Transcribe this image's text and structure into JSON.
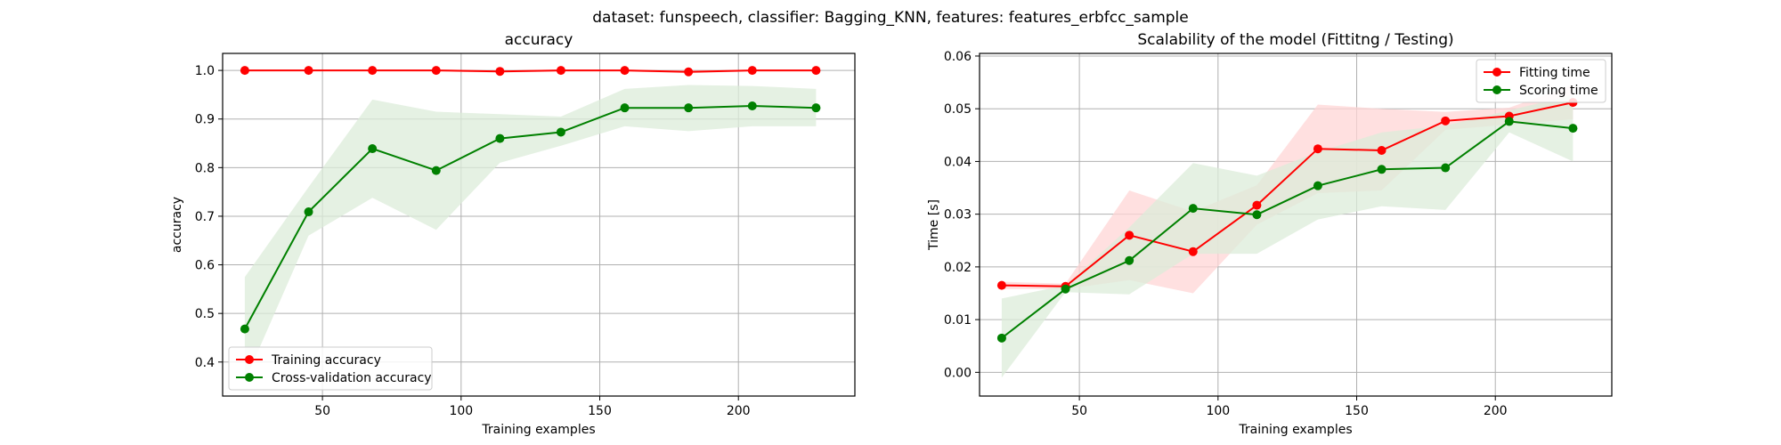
{
  "figure": {
    "suptitle": "dataset: funspeech, classifier: Bagging_KNN, features: features_erbfcc_sample"
  },
  "colors": {
    "red": "#ff0000",
    "green": "#008000",
    "grid": "#b0b0b0",
    "red_band": "#ffd6d6",
    "green_band": "#dcecd9"
  },
  "chart_data": [
    {
      "type": "line",
      "title": "accuracy",
      "xlabel": "Training examples",
      "ylabel": "accuracy",
      "xlim": [
        14,
        242
      ],
      "ylim": [
        0.33,
        1.035
      ],
      "xticks": [
        50,
        100,
        150,
        200
      ],
      "yticks": [
        0.4,
        0.5,
        0.6,
        0.7,
        0.8,
        0.9,
        1.0
      ],
      "ytick_labels": [
        "0.4",
        "0.5",
        "0.6",
        "0.7",
        "0.8",
        "0.9",
        "1.0"
      ],
      "grid": true,
      "legend_position": "lower-left",
      "x": [
        22,
        45,
        68,
        91,
        114,
        136,
        159,
        182,
        205,
        228
      ],
      "series": [
        {
          "name": "Training accuracy",
          "color": "red",
          "values": [
            1.0,
            1.0,
            1.0,
            1.0,
            0.998,
            1.0,
            1.0,
            0.997,
            1.0,
            1.0
          ],
          "lower": [
            0.998,
            0.999,
            0.999,
            0.998,
            0.995,
            0.998,
            0.998,
            0.994,
            0.998,
            0.998
          ],
          "upper": [
            1.0,
            1.0,
            1.0,
            1.0,
            1.0,
            1.0,
            1.0,
            1.0,
            1.0,
            1.0
          ]
        },
        {
          "name": "Cross-validation accuracy",
          "color": "green",
          "values": [
            0.468,
            0.709,
            0.839,
            0.794,
            0.86,
            0.873,
            0.923,
            0.923,
            0.927,
            0.923
          ],
          "lower": [
            0.36,
            0.66,
            0.738,
            0.672,
            0.81,
            0.845,
            0.885,
            0.875,
            0.885,
            0.885
          ],
          "upper": [
            0.575,
            0.76,
            0.94,
            0.915,
            0.91,
            0.905,
            0.962,
            0.97,
            0.968,
            0.962
          ]
        }
      ]
    },
    {
      "type": "line",
      "title": "Scalability of the model (Fittitng / Testing)",
      "xlabel": "Training examples",
      "ylabel": "Time [s]",
      "xlim": [
        14,
        242
      ],
      "ylim": [
        -0.0045,
        0.0605
      ],
      "xticks": [
        50,
        100,
        150,
        200
      ],
      "yticks": [
        0.0,
        0.01,
        0.02,
        0.03,
        0.04,
        0.05,
        0.06
      ],
      "ytick_labels": [
        "0.00",
        "0.01",
        "0.02",
        "0.03",
        "0.04",
        "0.05",
        "0.06"
      ],
      "grid": true,
      "legend_position": "upper-right",
      "x": [
        22,
        45,
        68,
        91,
        114,
        136,
        159,
        182,
        205,
        228
      ],
      "series": [
        {
          "name": "Fitting time",
          "color": "red",
          "values": [
            0.0165,
            0.0163,
            0.026,
            0.0229,
            0.0317,
            0.0424,
            0.0421,
            0.0477,
            0.0486,
            0.0512
          ],
          "lower": [
            0.0158,
            0.0158,
            0.0175,
            0.015,
            0.028,
            0.034,
            0.0345,
            0.046,
            0.047,
            0.048
          ],
          "upper": [
            0.0172,
            0.0168,
            0.0345,
            0.0305,
            0.0355,
            0.0508,
            0.05,
            0.0494,
            0.0502,
            0.0545
          ]
        },
        {
          "name": "Scoring time",
          "color": "green",
          "values": [
            0.0065,
            0.0158,
            0.0212,
            0.0311,
            0.0299,
            0.0354,
            0.0385,
            0.0388,
            0.0476,
            0.0463
          ],
          "lower": [
            -0.001,
            0.0152,
            0.0148,
            0.0225,
            0.0225,
            0.029,
            0.0315,
            0.0308,
            0.0455,
            0.04
          ],
          "upper": [
            0.014,
            0.0165,
            0.0275,
            0.0397,
            0.0373,
            0.0418,
            0.0455,
            0.0468,
            0.0497,
            0.0526
          ]
        }
      ]
    }
  ]
}
